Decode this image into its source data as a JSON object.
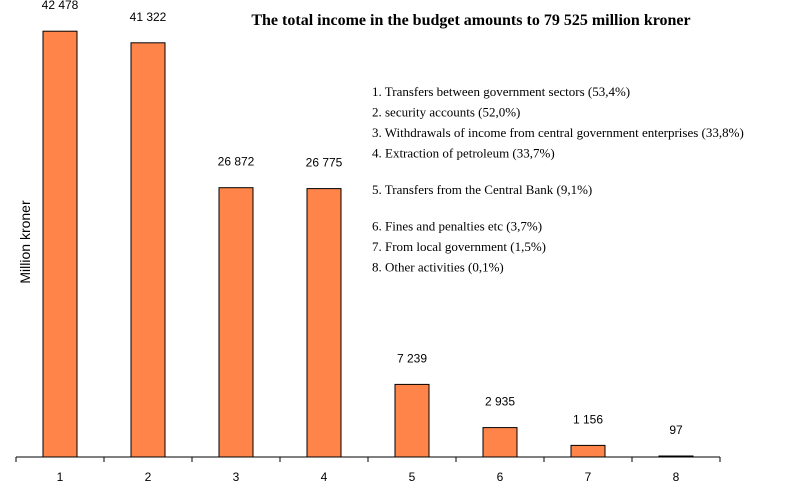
{
  "colors": {
    "bar": "#ff8449",
    "axis": "#000000",
    "background": "#ffffff"
  },
  "chart_data": {
    "type": "bar",
    "title": "The total income in the budget amounts to 79 525 million kroner",
    "xlabel": "",
    "ylabel": "Million kroner",
    "ylim": [
      0,
      42800
    ],
    "grid": false,
    "categories": [
      "1",
      "2",
      "3",
      "4",
      "5",
      "6",
      "7",
      "8"
    ],
    "values": [
      42478,
      41322,
      26872,
      26775,
      7239,
      2935,
      1156,
      97
    ],
    "data_labels": [
      "42 478",
      "41 322",
      "26 872",
      "26 775",
      "7 239",
      "2 935",
      "1 156",
      "97"
    ],
    "legend_placement": "top-right",
    "legend_groups": [
      [
        "1. Transfers between government sectors (53,4%)",
        "2. security accounts (52,0%)",
        "3. Withdrawals of income from central government enterprises (33,8%)",
        "4. Extraction of petroleum (33,7%)"
      ],
      [
        "5. Transfers from the Central Bank (9,1%)"
      ],
      [
        "6. Fines and penalties etc (3,7%)",
        "7. From local government (1,5%)",
        "8. Other activities (0,1%)"
      ]
    ]
  }
}
